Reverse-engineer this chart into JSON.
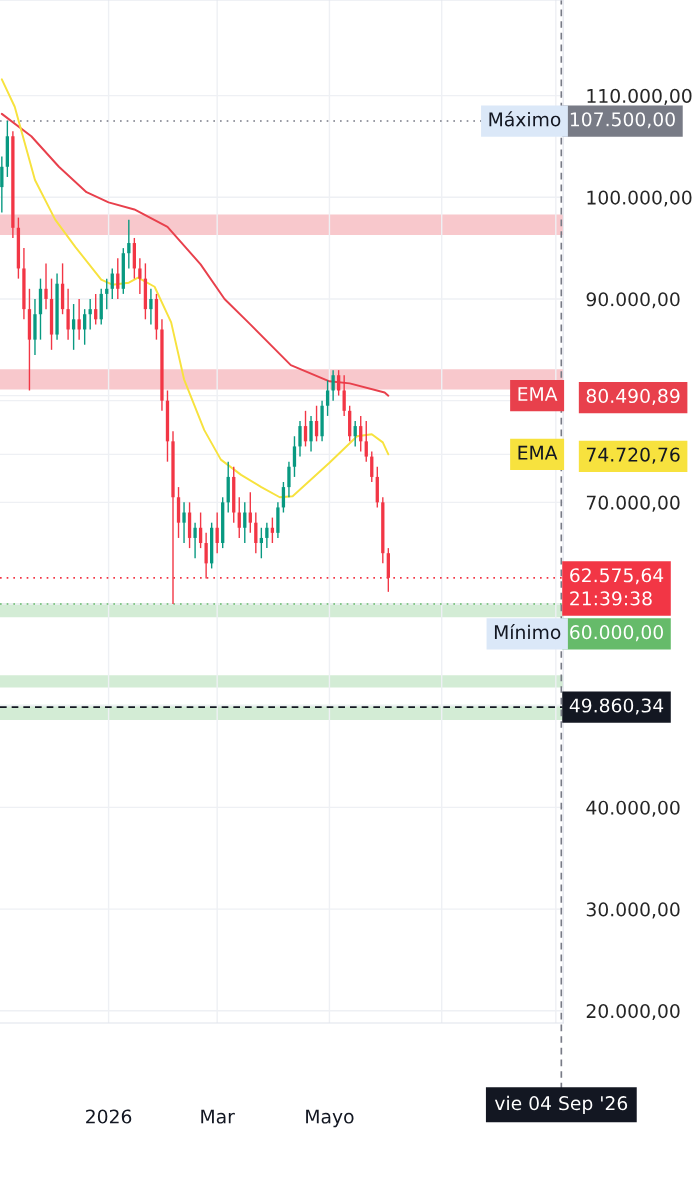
{
  "chart_data": {
    "type": "candlestick",
    "x": [
      "2025-11-04",
      "2025-11-07",
      "2025-11-10",
      "2025-11-13",
      "2025-11-16",
      "2025-11-19",
      "2025-11-22",
      "2025-11-25",
      "2025-11-28",
      "2025-12-01",
      "2025-12-04",
      "2025-12-07",
      "2025-12-10",
      "2025-12-13",
      "2025-12-16",
      "2025-12-19",
      "2025-12-22",
      "2025-12-25",
      "2025-12-28",
      "2025-12-31",
      "2026-01-03",
      "2026-01-06",
      "2026-01-09",
      "2026-01-12",
      "2026-01-15",
      "2026-01-18",
      "2026-01-21",
      "2026-01-24",
      "2026-01-27",
      "2026-01-30",
      "2026-02-02",
      "2026-02-05",
      "2026-02-08",
      "2026-02-11",
      "2026-02-14",
      "2026-02-17",
      "2026-02-20",
      "2026-02-23",
      "2026-02-26",
      "2026-03-01",
      "2026-03-04",
      "2026-03-07",
      "2026-03-10",
      "2026-03-13",
      "2026-03-16",
      "2026-03-19",
      "2026-03-22",
      "2026-03-25",
      "2026-03-28",
      "2026-03-31",
      "2026-04-03",
      "2026-04-06",
      "2026-04-09",
      "2026-04-12",
      "2026-04-15",
      "2026-04-18",
      "2026-04-21",
      "2026-04-24",
      "2026-04-27",
      "2026-04-30",
      "2026-05-03",
      "2026-05-06",
      "2026-05-09",
      "2026-05-12",
      "2026-05-15",
      "2026-05-18",
      "2026-05-21",
      "2026-05-24",
      "2026-05-27",
      "2026-05-30",
      "2026-06-02"
    ],
    "ohlc": [
      [
        101000,
        104000,
        98500,
        103000
      ],
      [
        103000,
        107500,
        102000,
        106000
      ],
      [
        106000,
        106500,
        96000,
        97000
      ],
      [
        97000,
        98000,
        92000,
        93000
      ],
      [
        93000,
        95000,
        88000,
        89000
      ],
      [
        89000,
        91000,
        81000,
        86000
      ],
      [
        86000,
        90000,
        84500,
        88500
      ],
      [
        88500,
        92000,
        86000,
        91000
      ],
      [
        91000,
        93500,
        89000,
        90000
      ],
      [
        90000,
        92000,
        85000,
        86500
      ],
      [
        86500,
        92500,
        86000,
        91500
      ],
      [
        91500,
        93500,
        88500,
        89000
      ],
      [
        89000,
        91000,
        86000,
        87000
      ],
      [
        87000,
        89500,
        85000,
        88000
      ],
      [
        88000,
        90000,
        86000,
        87000
      ],
      [
        87000,
        89000,
        85500,
        88500
      ],
      [
        88500,
        90000,
        87000,
        89000
      ],
      [
        89000,
        90500,
        87500,
        88000
      ],
      [
        88000,
        91000,
        87500,
        90500
      ],
      [
        90500,
        92000,
        89000,
        91000
      ],
      [
        91000,
        93000,
        90000,
        92500
      ],
      [
        92500,
        94000,
        90000,
        91000
      ],
      [
        91000,
        95000,
        90500,
        94500
      ],
      [
        94500,
        97800,
        93000,
        95500
      ],
      [
        95500,
        96000,
        92000,
        93000
      ],
      [
        93000,
        94000,
        90500,
        92000
      ],
      [
        92000,
        93500,
        88000,
        89000
      ],
      [
        89000,
        91000,
        87500,
        90000
      ],
      [
        90000,
        90500,
        86000,
        87000
      ],
      [
        87000,
        88000,
        79000,
        80000
      ],
      [
        80000,
        81000,
        74000,
        76000
      ],
      [
        76000,
        77000,
        60000,
        70500
      ],
      [
        70500,
        71500,
        66500,
        68000
      ],
      [
        68000,
        70000,
        66000,
        69000
      ],
      [
        69000,
        70000,
        65500,
        66500
      ],
      [
        66500,
        68000,
        64500,
        67500
      ],
      [
        67500,
        69000,
        65500,
        66000
      ],
      [
        66000,
        67000,
        62500,
        64000
      ],
      [
        64000,
        68000,
        63500,
        67500
      ],
      [
        67500,
        69000,
        65000,
        66000
      ],
      [
        66000,
        70500,
        65500,
        70000
      ],
      [
        70000,
        74000,
        69000,
        72500
      ],
      [
        72500,
        73500,
        68000,
        69000
      ],
      [
        69000,
        70500,
        66500,
        67500
      ],
      [
        67500,
        70000,
        66000,
        69000
      ],
      [
        69000,
        71000,
        67000,
        68000
      ],
      [
        68000,
        69000,
        65000,
        66000
      ],
      [
        66000,
        67500,
        64500,
        66500
      ],
      [
        66500,
        68000,
        65500,
        67500
      ],
      [
        67500,
        68500,
        66000,
        67000
      ],
      [
        67000,
        70000,
        66500,
        69500
      ],
      [
        69500,
        72000,
        69000,
        71500
      ],
      [
        71500,
        74000,
        70500,
        73500
      ],
      [
        73500,
        76500,
        72500,
        75500
      ],
      [
        75500,
        78000,
        74500,
        77500
      ],
      [
        77500,
        79000,
        75500,
        76000
      ],
      [
        76000,
        78500,
        75000,
        78000
      ],
      [
        78000,
        79500,
        76000,
        76500
      ],
      [
        76500,
        80000,
        76000,
        79500
      ],
      [
        79500,
        82000,
        78500,
        81000
      ],
      [
        81000,
        83000,
        80000,
        82500
      ],
      [
        82500,
        83000,
        80500,
        81000
      ],
      [
        81000,
        82500,
        78500,
        79000
      ],
      [
        79000,
        79500,
        76000,
        76500
      ],
      [
        76500,
        78000,
        75500,
        77500
      ],
      [
        77500,
        78500,
        75000,
        76000
      ],
      [
        76000,
        78000,
        74000,
        74500
      ],
      [
        74500,
        75000,
        72000,
        72500
      ],
      [
        72500,
        73500,
        69500,
        70000
      ],
      [
        70000,
        70500,
        64000,
        65000
      ],
      [
        65000,
        65500,
        61200,
        62575.64
      ]
    ],
    "colors": [
      "#089981",
      "#089981",
      "#f23645",
      "#f23645",
      "#f23645",
      "#f23645",
      "#089981",
      "#089981",
      "#f23645",
      "#f23645",
      "#089981",
      "#f23645",
      "#f23645",
      "#089981",
      "#f23645",
      "#089981",
      "#089981",
      "#f23645",
      "#089981",
      "#089981",
      "#089981",
      "#f23645",
      "#089981",
      "#089981",
      "#f23645",
      "#f23645",
      "#f23645",
      "#089981",
      "#f23645",
      "#f23645",
      "#f23645",
      "#f23645",
      "#f23645",
      "#089981",
      "#f23645",
      "#089981",
      "#f23645",
      "#f23645",
      "#089981",
      "#f23645",
      "#089981",
      "#089981",
      "#f23645",
      "#f23645",
      "#089981",
      "#f23645",
      "#f23645",
      "#089981",
      "#089981",
      "#f23645",
      "#089981",
      "#089981",
      "#089981",
      "#089981",
      "#089981",
      "#f23645",
      "#089981",
      "#f23645",
      "#089981",
      "#089981",
      "#089981",
      "#f23645",
      "#f23645",
      "#f23645",
      "#089981",
      "#f23645",
      "#f23645",
      "#f23645",
      "#f23645",
      "#f23645",
      "#f23645"
    ],
    "series": [
      {
        "type": "line",
        "name": "EMA",
        "color": "#e8404c",
        "x": [
          "2025-11-04",
          "2025-11-20",
          "2025-12-05",
          "2025-12-20",
          "2026-01-01",
          "2026-01-15",
          "2026-02-02",
          "2026-02-20",
          "2026-03-05",
          "2026-03-19",
          "2026-04-10",
          "2026-05-01",
          "2026-05-12",
          "2026-05-31",
          "2026-06-02"
        ],
        "values": [
          108200,
          106000,
          103000,
          100500,
          99500,
          98800,
          97100,
          93400,
          90000,
          87500,
          83500,
          81900,
          81700,
          80800,
          80490.89
        ]
      },
      {
        "type": "line",
        "name": "EMA",
        "color": "#f7e23e",
        "x": [
          "2025-11-04",
          "2025-11-11",
          "2025-11-22",
          "2025-12-03",
          "2025-12-14",
          "2025-12-28",
          "2026-01-03",
          "2026-01-12",
          "2026-01-17",
          "2026-01-26",
          "2026-02-04",
          "2026-02-11",
          "2026-02-22",
          "2026-03-03",
          "2026-03-14",
          "2026-03-25",
          "2026-04-04",
          "2026-04-11",
          "2026-05-01",
          "2026-05-16",
          "2026-05-24",
          "2026-05-30",
          "2026-06-02"
        ],
        "values": [
          111600,
          108900,
          101700,
          97800,
          95100,
          91900,
          91400,
          91600,
          92100,
          91200,
          87700,
          82100,
          77100,
          74200,
          72700,
          71500,
          70500,
          70600,
          73900,
          76500,
          76700,
          75900,
          74720.76
        ]
      }
    ],
    "xlim": [
      "2025-11-03",
      "2026-09-05"
    ],
    "xticks": [
      {
        "value": "2026-01-01",
        "label": "2026"
      },
      {
        "value": "2026-03-01",
        "label": "Mar"
      },
      {
        "value": "2026-05-01",
        "label": "Mayo"
      },
      {
        "value": "2026-07-01",
        "label": null
      },
      {
        "value": "2026-09-01",
        "label": null
      }
    ],
    "ylim": [
      18800,
      119400
    ],
    "yticks": [
      {
        "value": 20000,
        "label": "20.000,00"
      },
      {
        "value": 30000,
        "label": "30.000,00"
      },
      {
        "value": 40000,
        "label": "40.000,00"
      },
      {
        "value": 50000,
        "label": null
      },
      {
        "value": 60000,
        "label": null
      },
      {
        "value": 70000,
        "label": "70.000,00"
      },
      {
        "value": 74720.76,
        "label": "74.720,76"
      },
      {
        "value": 80000,
        "label": null
      },
      {
        "value": 80490.89,
        "label": "80.490,89"
      },
      {
        "value": 90000,
        "label": "90.000,00"
      },
      {
        "value": 100000,
        "label": "100.000,00"
      },
      {
        "value": 110000,
        "label": "110.000,00"
      }
    ],
    "grid": true,
    "bands": [
      {
        "axis": "y",
        "from": 96300,
        "to": 98300,
        "color": "#f8c8cc"
      },
      {
        "axis": "y",
        "from": 81100,
        "to": 83100,
        "color": "#f8c8cc"
      },
      {
        "axis": "y",
        "from": 58700,
        "to": 60100,
        "color": "#d3ecd5"
      },
      {
        "axis": "y",
        "from": 51800,
        "to": 53000,
        "color": "#d3ecd5"
      },
      {
        "axis": "y",
        "from": 48600,
        "to": 50100,
        "color": "#d3ecd5"
      }
    ],
    "ref_lines": [
      {
        "axis": "y",
        "value": 107500,
        "label": "107.500,00",
        "color": "#787b86",
        "line_style": "dotted"
      },
      {
        "axis": "y",
        "value": 62575.64,
        "label": "62.575,64\n21:39:38",
        "color": "#f23645",
        "line_style": "dotted"
      },
      {
        "axis": "y",
        "value": 60000,
        "label": "60.000,00",
        "color": "#66bb6a",
        "line_style": "dotted"
      },
      {
        "axis": "y",
        "value": 49860.34,
        "label": "49.860,34",
        "color": "#131722",
        "line_style": "dashed"
      },
      {
        "axis": "x",
        "value": "2026-09-04",
        "label": "vie 04 Sep '26",
        "color": "#787b86",
        "line_style": "dashed"
      }
    ],
    "annotations": [
      {
        "text": "Máximo",
        "x": "2026-09-04",
        "y": 107500
      },
      {
        "text": "Mínimo",
        "x": "2026-09-04",
        "y": 60000
      }
    ]
  }
}
